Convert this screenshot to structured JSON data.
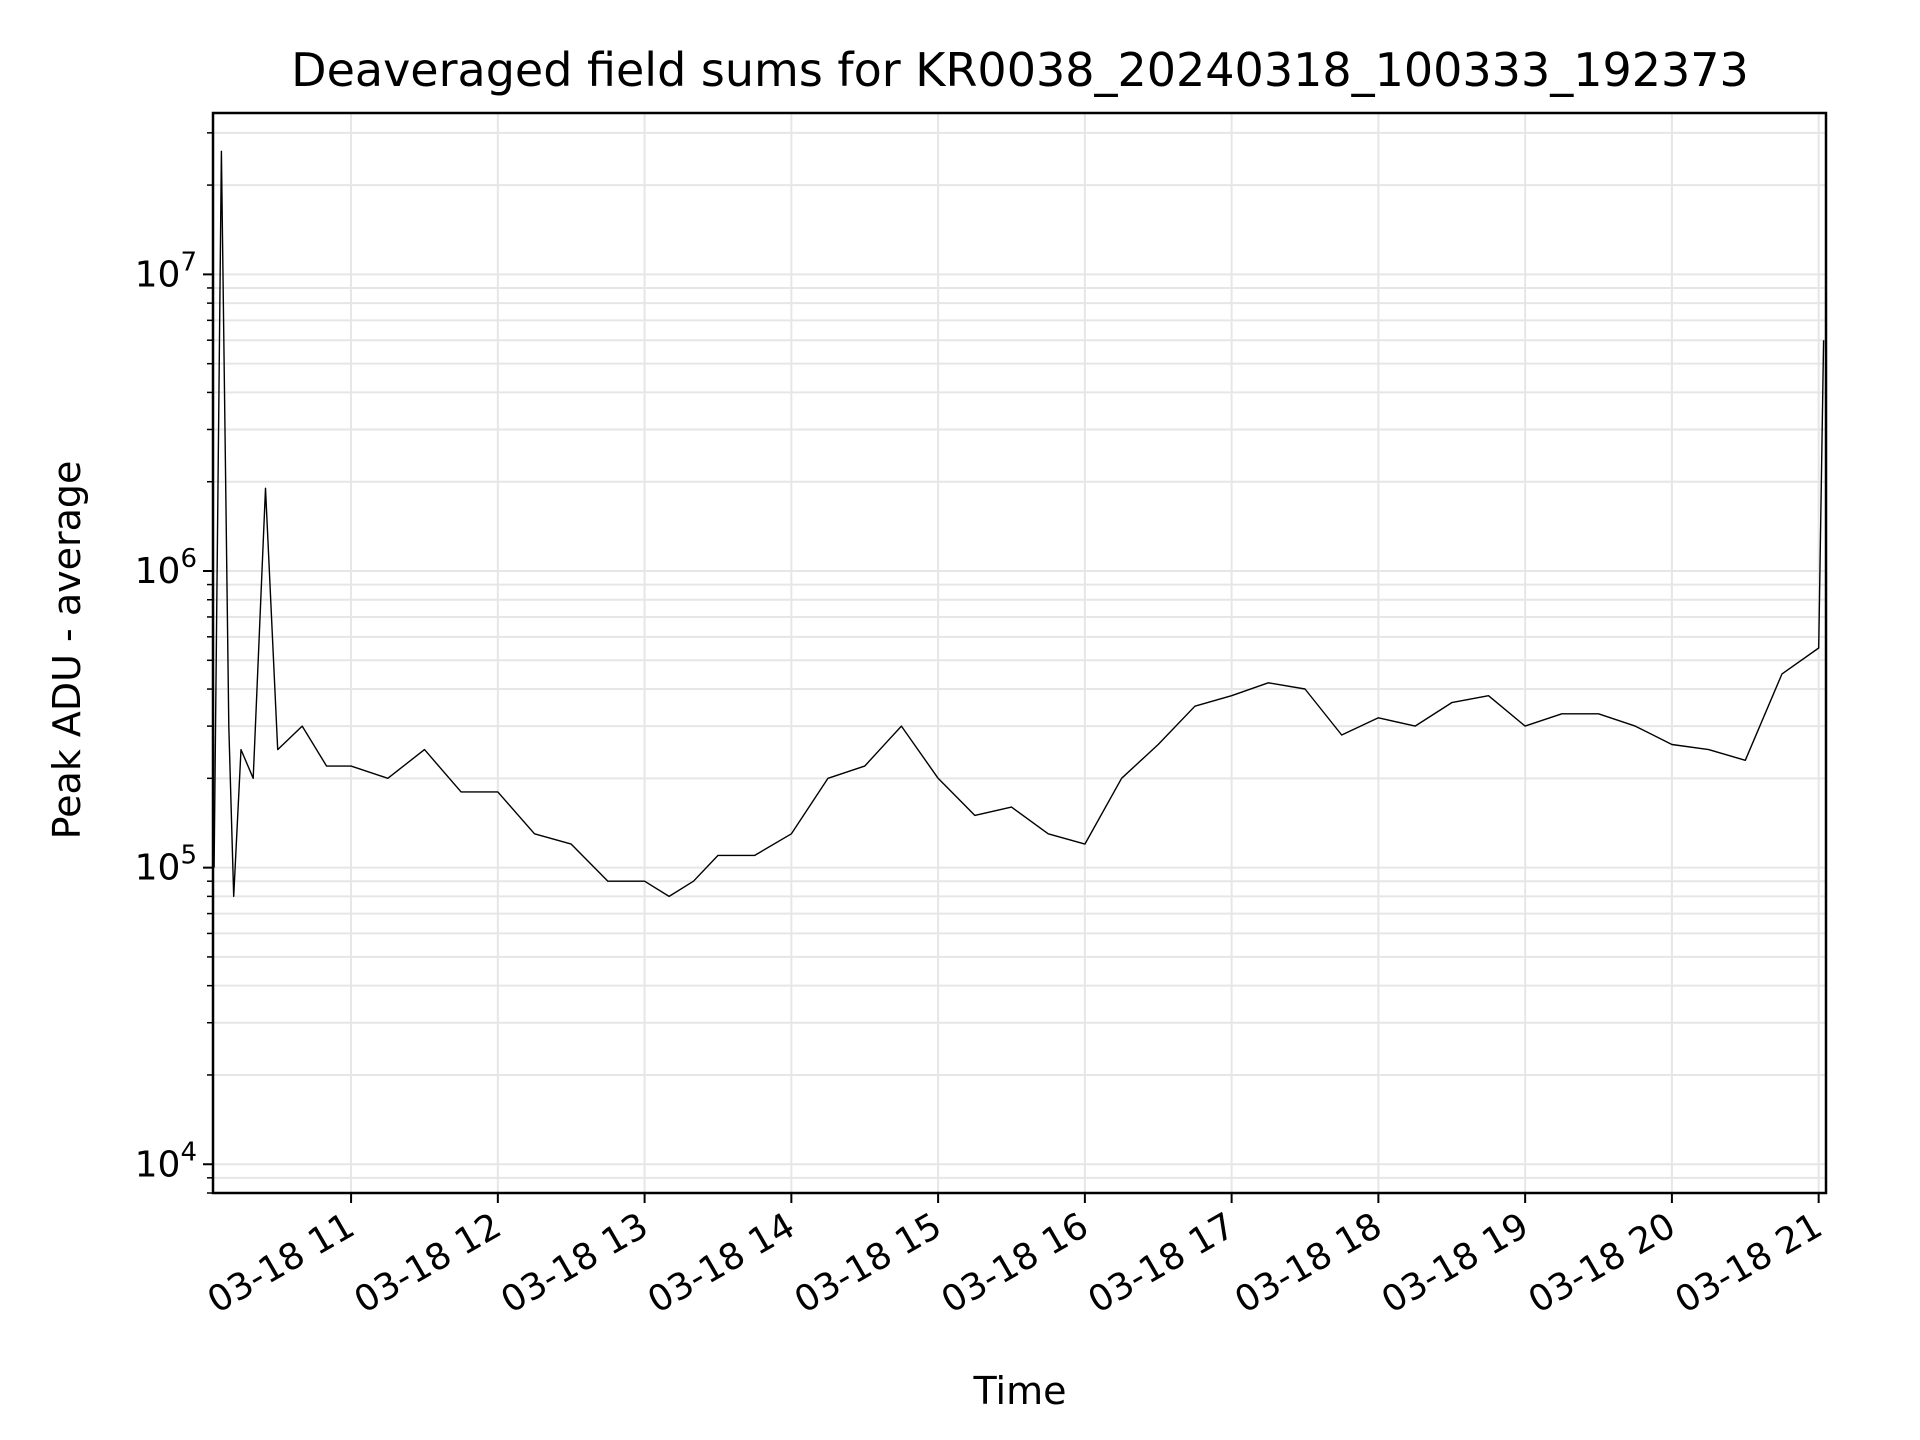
{
  "chart_data": {
    "type": "line",
    "title": "Deaveraged field sums for KR0038_20240318_100333_192373",
    "xlabel": "Time",
    "ylabel": "Peak ADU - average",
    "y_scale": "log",
    "ylim": [
      8000,
      35000000
    ],
    "xlim": [
      "2024-03-18T10:03:33",
      "2024-03-18T21:03:00"
    ],
    "x_ticks": [
      {
        "value": "2024-03-18T11:00:00",
        "label": "03-18 11"
      },
      {
        "value": "2024-03-18T12:00:00",
        "label": "03-18 12"
      },
      {
        "value": "2024-03-18T13:00:00",
        "label": "03-18 13"
      },
      {
        "value": "2024-03-18T14:00:00",
        "label": "03-18 14"
      },
      {
        "value": "2024-03-18T15:00:00",
        "label": "03-18 15"
      },
      {
        "value": "2024-03-18T16:00:00",
        "label": "03-18 16"
      },
      {
        "value": "2024-03-18T17:00:00",
        "label": "03-18 17"
      },
      {
        "value": "2024-03-18T18:00:00",
        "label": "03-18 18"
      },
      {
        "value": "2024-03-18T19:00:00",
        "label": "03-18 19"
      },
      {
        "value": "2024-03-18T20:00:00",
        "label": "03-18 20"
      },
      {
        "value": "2024-03-18T21:00:00",
        "label": "03-18 21"
      }
    ],
    "y_ticks": [
      {
        "value": 10000,
        "label": "10^4"
      },
      {
        "value": 100000,
        "label": "10^5"
      },
      {
        "value": 1000000,
        "label": "10^6"
      },
      {
        "value": 10000000,
        "label": "10^7"
      }
    ],
    "grid": true,
    "line_color": "#000000",
    "series": [
      {
        "x": [
          "2024-03-18T10:04:00",
          "2024-03-18T10:07:00",
          "2024-03-18T10:10:00",
          "2024-03-18T10:12:00",
          "2024-03-18T10:15:00",
          "2024-03-18T10:20:00",
          "2024-03-18T10:25:00",
          "2024-03-18T10:30:00",
          "2024-03-18T10:40:00",
          "2024-03-18T10:50:00",
          "2024-03-18T11:00:00",
          "2024-03-18T11:15:00",
          "2024-03-18T11:30:00",
          "2024-03-18T11:45:00",
          "2024-03-18T12:00:00",
          "2024-03-18T12:15:00",
          "2024-03-18T12:30:00",
          "2024-03-18T12:45:00",
          "2024-03-18T13:00:00",
          "2024-03-18T13:10:00",
          "2024-03-18T13:20:00",
          "2024-03-18T13:30:00",
          "2024-03-18T13:45:00",
          "2024-03-18T14:00:00",
          "2024-03-18T14:15:00",
          "2024-03-18T14:30:00",
          "2024-03-18T14:45:00",
          "2024-03-18T15:00:00",
          "2024-03-18T15:15:00",
          "2024-03-18T15:30:00",
          "2024-03-18T15:45:00",
          "2024-03-18T16:00:00",
          "2024-03-18T16:15:00",
          "2024-03-18T16:30:00",
          "2024-03-18T16:45:00",
          "2024-03-18T17:00:00",
          "2024-03-18T17:15:00",
          "2024-03-18T17:30:00",
          "2024-03-18T17:45:00",
          "2024-03-18T18:00:00",
          "2024-03-18T18:15:00",
          "2024-03-18T18:30:00",
          "2024-03-18T18:45:00",
          "2024-03-18T19:00:00",
          "2024-03-18T19:15:00",
          "2024-03-18T19:30:00",
          "2024-03-18T19:45:00",
          "2024-03-18T20:00:00",
          "2024-03-18T20:15:00",
          "2024-03-18T20:30:00",
          "2024-03-18T20:45:00",
          "2024-03-18T21:00:00",
          "2024-03-18T21:02:00"
        ],
        "values": [
          100000,
          26000000,
          300000,
          80000,
          250000,
          200000,
          1900000,
          250000,
          300000,
          220000,
          220000,
          200000,
          250000,
          180000,
          180000,
          130000,
          120000,
          90000,
          90000,
          80000,
          90000,
          110000,
          110000,
          130000,
          200000,
          220000,
          300000,
          200000,
          150000,
          160000,
          130000,
          120000,
          200000,
          260000,
          350000,
          380000,
          420000,
          400000,
          280000,
          320000,
          300000,
          360000,
          380000,
          300000,
          330000,
          330000,
          300000,
          260000,
          250000,
          230000,
          450000,
          550000,
          6000000
        ]
      }
    ]
  }
}
